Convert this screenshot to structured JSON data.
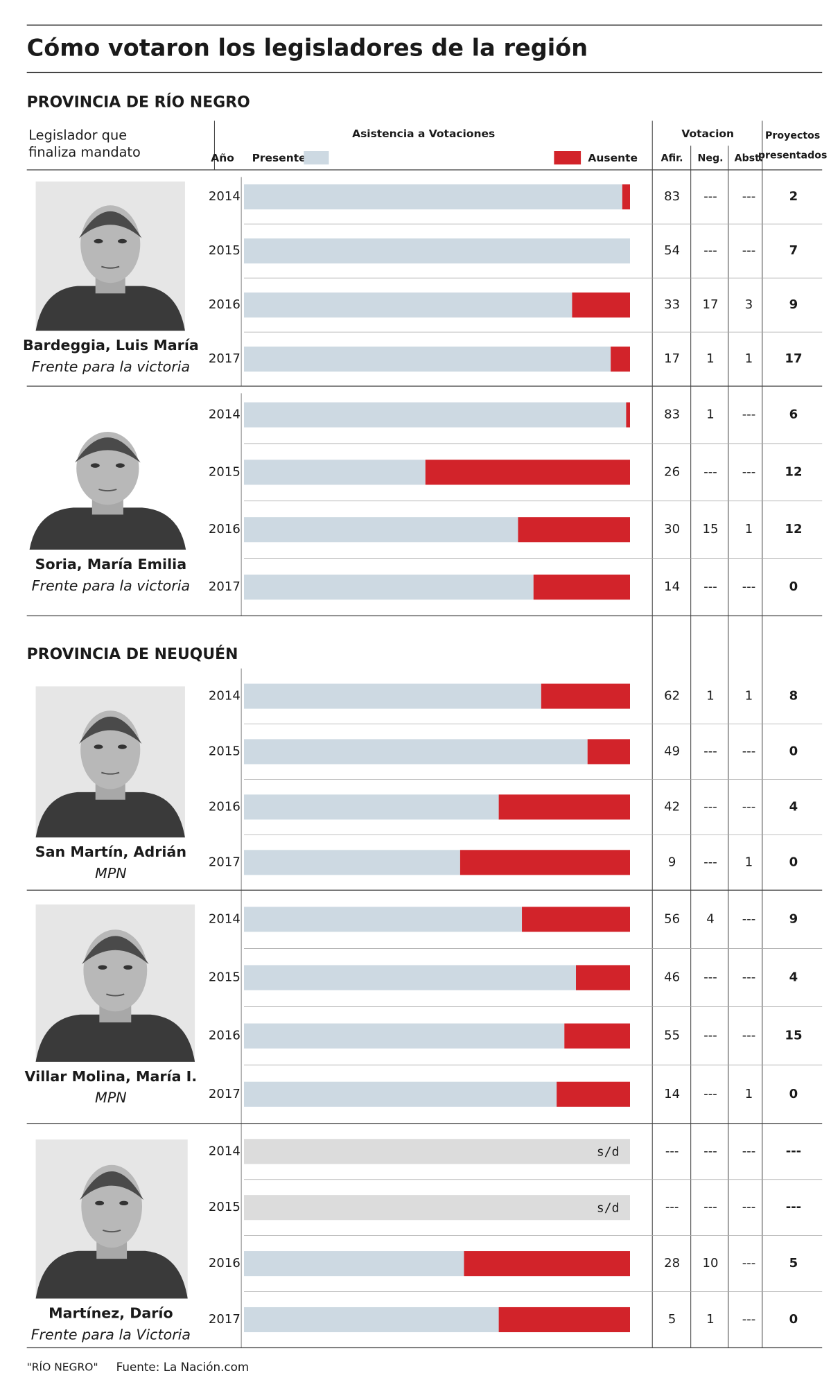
{
  "title": "Cómo votaron los legisladores de la región",
  "header": {
    "legislator": [
      "Legislador que",
      "finaliza mandato"
    ],
    "year": "Año",
    "attendance": "Asistencia a Votaciones",
    "present": "Presente",
    "absent": "Ausente",
    "votes": "Votacion",
    "afir": "Afir.",
    "neg": "Neg.",
    "abst": "Abst.",
    "projects": [
      "Proyectos",
      "presentados"
    ],
    "present_color": "#cdd9e2",
    "absent_color": "#d2232a"
  },
  "sections": [
    {
      "title": "PROVINCIA DE RÍO NEGRO",
      "legislators": [
        {
          "name": "Bardeggia, Luis María",
          "party": "Frente para la victoria",
          "rows": [
            {
              "year": "2014",
              "presente": 98,
              "ausente": 2,
              "afir": "83",
              "neg": "---",
              "abst": "---",
              "proyectos": "2"
            },
            {
              "year": "2015",
              "presente": 100,
              "ausente": 0,
              "afir": "54",
              "neg": "---",
              "abst": "---",
              "proyectos": "7"
            },
            {
              "year": "2016",
              "presente": 85,
              "ausente": 15,
              "afir": "33",
              "neg": "17",
              "abst": "3",
              "proyectos": "9"
            },
            {
              "year": "2017",
              "presente": 95,
              "ausente": 5,
              "afir": "17",
              "neg": "1",
              "abst": "1",
              "proyectos": "17"
            }
          ]
        },
        {
          "name": "Soria, María Emilia",
          "party": "Frente para la victoria",
          "rows": [
            {
              "year": "2014",
              "presente": 99,
              "ausente": 1,
              "afir": "83",
              "neg": "1",
              "abst": "---",
              "proyectos": "6"
            },
            {
              "year": "2015",
              "presente": 47,
              "ausente": 53,
              "afir": "26",
              "neg": "---",
              "abst": "---",
              "proyectos": "12"
            },
            {
              "year": "2016",
              "presente": 71,
              "ausente": 29,
              "afir": "30",
              "neg": "15",
              "abst": "1",
              "proyectos": "12"
            },
            {
              "year": "2017",
              "presente": 75,
              "ausente": 25,
              "afir": "14",
              "neg": "---",
              "abst": "---",
              "proyectos": "0"
            }
          ]
        }
      ]
    },
    {
      "title": "PROVINCIA DE NEUQUÉN",
      "legislators": [
        {
          "name": "San Martín, Adrián",
          "party": "MPN",
          "rows": [
            {
              "year": "2014",
              "presente": 77,
              "ausente": 23,
              "afir": "62",
              "neg": "1",
              "abst": "1",
              "proyectos": "8"
            },
            {
              "year": "2015",
              "presente": 89,
              "ausente": 11,
              "afir": "49",
              "neg": "---",
              "abst": "---",
              "proyectos": "0"
            },
            {
              "year": "2016",
              "presente": 66,
              "ausente": 34,
              "afir": "42",
              "neg": "---",
              "abst": "---",
              "proyectos": "4"
            },
            {
              "year": "2017",
              "presente": 56,
              "ausente": 44,
              "afir": "9",
              "neg": "---",
              "abst": "1",
              "proyectos": "0"
            }
          ]
        },
        {
          "name": "Villar Molina, María I.",
          "party": "MPN",
          "rows": [
            {
              "year": "2014",
              "presente": 72,
              "ausente": 28,
              "afir": "56",
              "neg": "4",
              "abst": "---",
              "proyectos": "9"
            },
            {
              "year": "2015",
              "presente": 86,
              "ausente": 14,
              "afir": "46",
              "neg": "---",
              "abst": "---",
              "proyectos": "4"
            },
            {
              "year": "2016",
              "presente": 83,
              "ausente": 17,
              "afir": "55",
              "neg": "---",
              "abst": "---",
              "proyectos": "15"
            },
            {
              "year": "2017",
              "presente": 81,
              "ausente": 19,
              "afir": "14",
              "neg": "---",
              "abst": "1",
              "proyectos": "0"
            }
          ]
        },
        {
          "name": "Martínez, Darío",
          "party": "Frente para la Victoria",
          "rows": [
            {
              "year": "2014",
              "presente": null,
              "ausente": null,
              "bar_label": "s/d",
              "afir": "---",
              "neg": "---",
              "abst": "---",
              "proyectos": "---"
            },
            {
              "year": "2015",
              "presente": null,
              "ausente": null,
              "bar_label": "s/d",
              "afir": "---",
              "neg": "---",
              "abst": "---",
              "proyectos": "---"
            },
            {
              "year": "2016",
              "presente": 57,
              "ausente": 43,
              "afir": "28",
              "neg": "10",
              "abst": "---",
              "proyectos": "5"
            },
            {
              "year": "2017",
              "presente": 66,
              "ausente": 34,
              "afir": "5",
              "neg": "1",
              "abst": "---",
              "proyectos": "0"
            }
          ]
        }
      ]
    }
  ],
  "footer": {
    "brand": "\"RÍO NEGRO\"",
    "source": "Fuente: La Nación.com"
  }
}
